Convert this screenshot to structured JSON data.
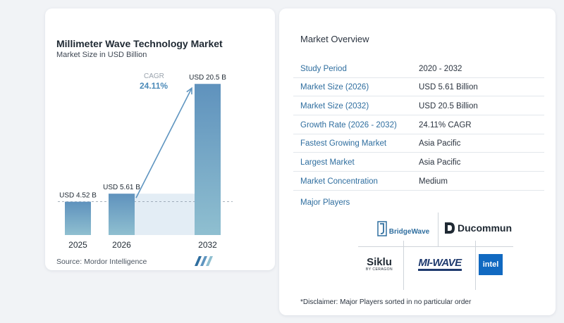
{
  "chart_data": {
    "type": "bar",
    "title": "Millimeter Wave Technology Market",
    "subtitle": "Market Size in USD Billion",
    "categories": [
      "2025",
      "2026",
      "2032"
    ],
    "values": [
      4.52,
      5.61,
      20.5
    ],
    "data_labels": [
      "USD 4.52 B",
      "USD 5.61 B",
      "USD 20.5 B"
    ],
    "cagr_label": "CAGR",
    "cagr_value": "24.11%",
    "ylim": [
      0,
      21
    ],
    "colors": {
      "bar_top": "#5f92bd",
      "bar_bottom": "#8fbfd0",
      "arrow": "#5f95c0",
      "band": "#e3edf5"
    }
  },
  "source": "Source:  Mordor Intelligence",
  "overview": {
    "title": "Market Overview",
    "rows": [
      {
        "label": "Study Period",
        "value": "2020 - 2032"
      },
      {
        "label": "Market Size (2026)",
        "value": "USD 5.61 Billion"
      },
      {
        "label": "Market Size (2032)",
        "value": "USD 20.5 Billion"
      },
      {
        "label": "Growth Rate (2026 - 2032)",
        "value": "24.11% CAGR"
      },
      {
        "label": "Fastest Growing Market",
        "value": "Asia Pacific"
      },
      {
        "label": "Largest Market",
        "value": "Asia Pacific"
      },
      {
        "label": "Market Concentration",
        "value": "Medium"
      }
    ],
    "players_title": "Major Players",
    "players": {
      "bridgewave": "BridgeWave",
      "ducommun": "Ducommun",
      "siklu": "Siklu",
      "siklu_sub": "BY CERAGON",
      "miwave": "MI-WAVE",
      "intel": "intel"
    },
    "disclaimer": "*Disclaimer: Major Players sorted in no particular order"
  }
}
